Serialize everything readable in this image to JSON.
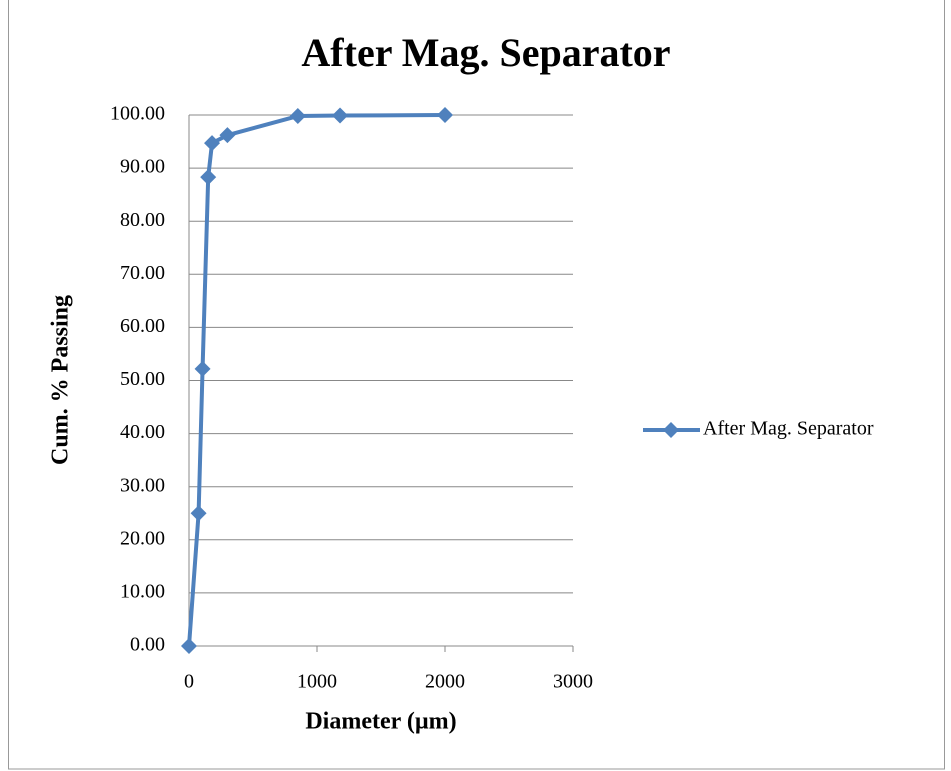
{
  "chart_data": {
    "type": "line",
    "title": "After Mag. Separator",
    "xlabel": "Diameter (µm)",
    "ylabel": "Cum. % Passing",
    "x": [
      0,
      75,
      106,
      150,
      180,
      300,
      850,
      1180,
      2000
    ],
    "series": [
      {
        "name": "After Mag. Separator",
        "color": "#4f81bd",
        "values": [
          0,
          25,
          52.2,
          88.3,
          94.7,
          96.2,
          99.8,
          99.9,
          100
        ]
      }
    ],
    "xlim": [
      0,
      3000
    ],
    "xticks": [
      0,
      1000,
      2000,
      3000
    ],
    "ylim": [
      0,
      100
    ],
    "yticks": [
      {
        "value": 0,
        "label": "0.00"
      },
      {
        "value": 10,
        "label": "10.00"
      },
      {
        "value": 20,
        "label": "20.00"
      },
      {
        "value": 30,
        "label": "30.00"
      },
      {
        "value": 40,
        "label": "40.00"
      },
      {
        "value": 50,
        "label": "50.00"
      },
      {
        "value": 60,
        "label": "60.00"
      },
      {
        "value": 70,
        "label": "70.00"
      },
      {
        "value": 80,
        "label": "80.00"
      },
      {
        "value": 90,
        "label": "90.00"
      },
      {
        "value": 100,
        "label": "100.00"
      }
    ],
    "grid": true,
    "legend": "right"
  }
}
